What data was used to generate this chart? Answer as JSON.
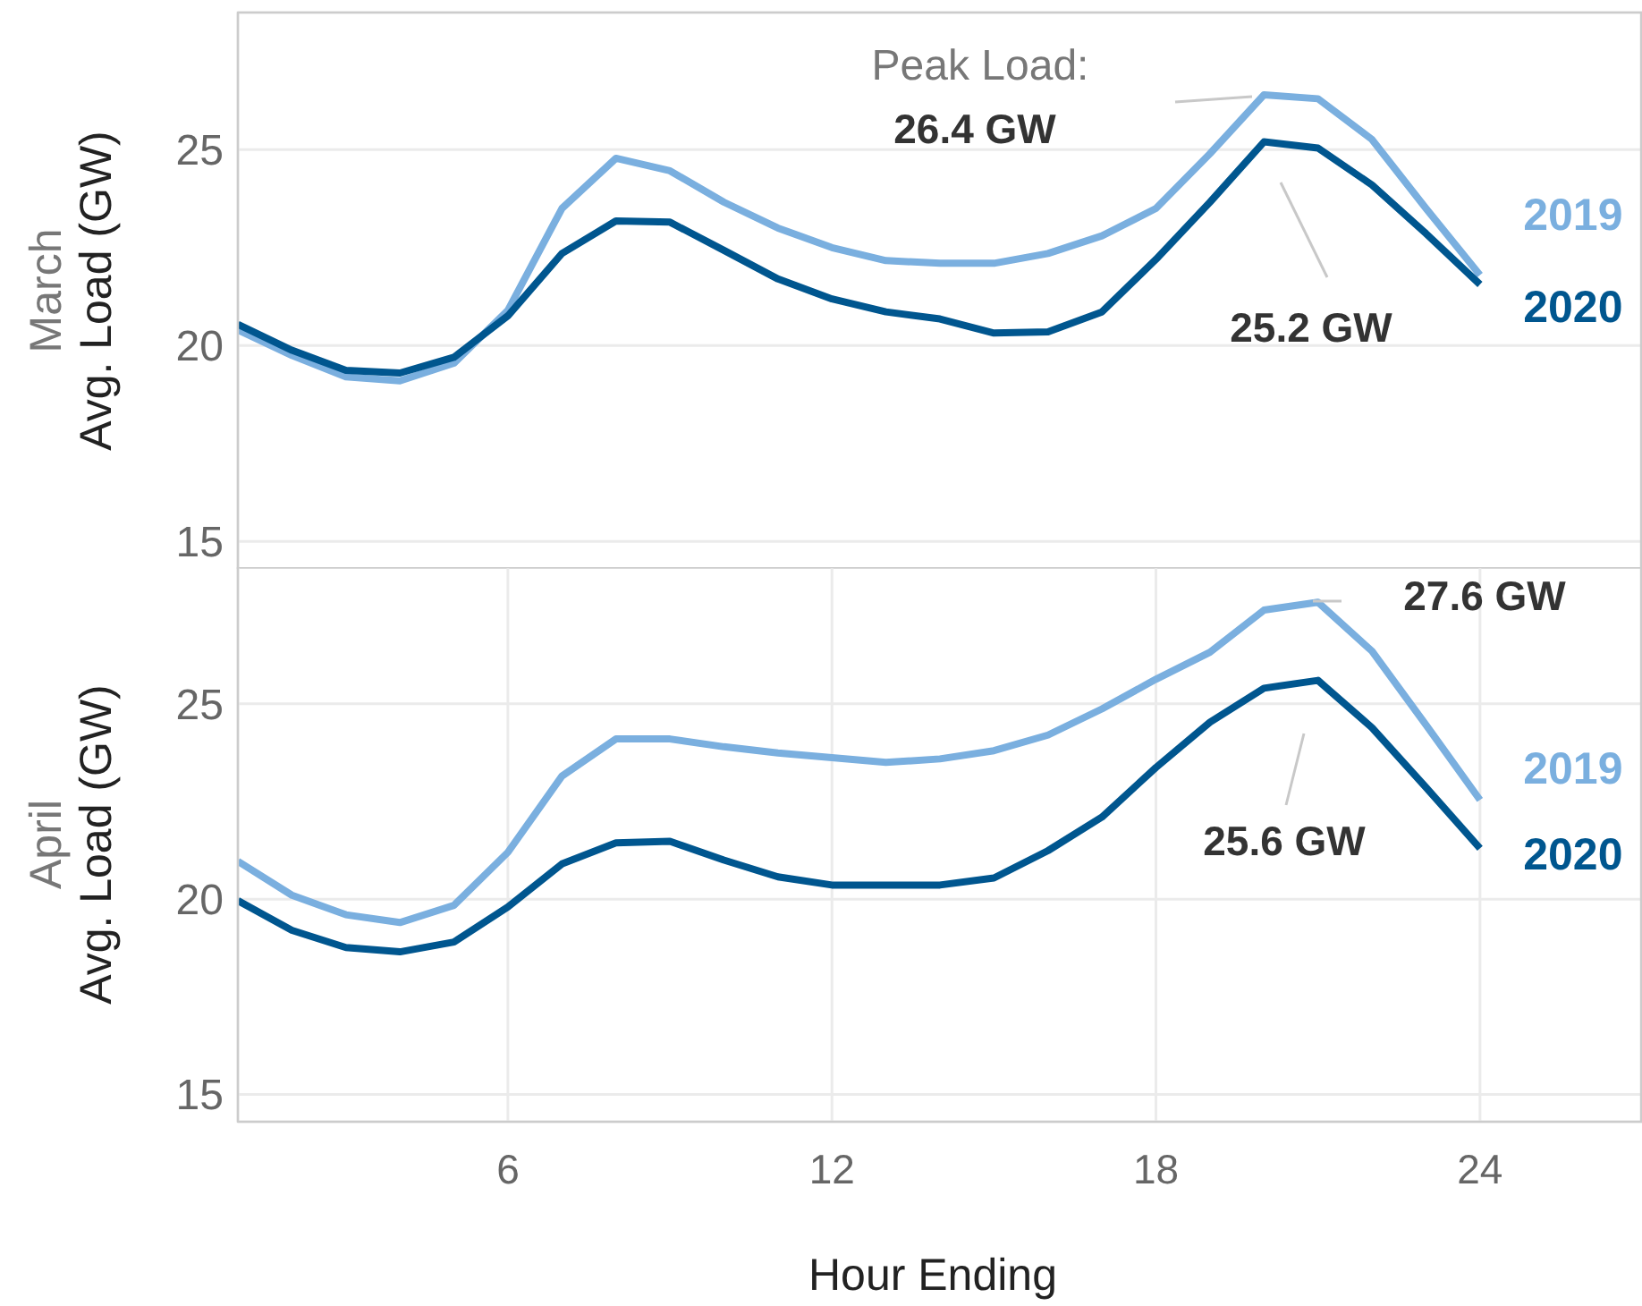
{
  "chart_data": [
    {
      "type": "line",
      "title": "March",
      "ylabel": "Avg. Load (GW)",
      "x": [
        1,
        2,
        3,
        4,
        5,
        6,
        7,
        8,
        9,
        10,
        11,
        12,
        13,
        14,
        15,
        16,
        17,
        18,
        19,
        20,
        21,
        22,
        23,
        24
      ],
      "xlim": [
        1,
        27
      ],
      "xticks": [
        6,
        12,
        18,
        24
      ],
      "ylim": [
        14.3,
        28.5
      ],
      "yticks": [
        15,
        20,
        25
      ],
      "grid": true,
      "legend": false,
      "tick_labels": "y",
      "series": [
        {
          "name": "2019",
          "color": "#7aafdf",
          "values": [
            20.4,
            19.75,
            19.2,
            19.1,
            19.55,
            20.9,
            23.5,
            24.78,
            24.46,
            23.66,
            23.0,
            22.5,
            22.17,
            22.1,
            22.1,
            22.35,
            22.8,
            23.5,
            24.9,
            26.4,
            26.3,
            25.26,
            23.5,
            21.8
          ]
        },
        {
          "name": "2020",
          "color": "#00568f",
          "values": [
            20.54,
            19.88,
            19.37,
            19.3,
            19.7,
            20.76,
            22.35,
            23.18,
            23.15,
            22.43,
            21.7,
            21.19,
            20.86,
            20.68,
            20.32,
            20.35,
            20.86,
            22.2,
            23.66,
            25.2,
            25.04,
            24.1,
            22.86,
            21.56
          ]
        }
      ],
      "annotations": [
        "Peak Load:",
        "26.4 GW",
        "25.2 GW"
      ]
    },
    {
      "type": "line",
      "title": "April",
      "ylabel": "Avg. Load (GW)",
      "xlabel": "Hour Ending",
      "x": [
        1,
        2,
        3,
        4,
        5,
        6,
        7,
        8,
        9,
        10,
        11,
        12,
        13,
        14,
        15,
        16,
        17,
        18,
        19,
        20,
        21,
        22,
        23,
        24
      ],
      "xlim": [
        1,
        27
      ],
      "xticks": [
        6,
        12,
        18,
        24
      ],
      "ylim": [
        14.3,
        28.5
      ],
      "yticks": [
        15,
        20,
        25
      ],
      "grid": true,
      "legend": false,
      "series": [
        {
          "name": "2019",
          "color": "#7aafdf",
          "values": [
            20.97,
            20.1,
            19.6,
            19.4,
            19.84,
            21.2,
            23.15,
            24.1,
            24.1,
            23.9,
            23.74,
            23.62,
            23.5,
            23.59,
            23.8,
            24.2,
            24.87,
            25.63,
            26.32,
            27.4,
            27.6,
            26.35,
            24.46,
            22.54
          ]
        },
        {
          "name": "2020",
          "color": "#00568f",
          "values": [
            19.96,
            19.2,
            18.76,
            18.65,
            18.9,
            19.8,
            20.9,
            21.44,
            21.48,
            21.0,
            20.57,
            20.36,
            20.36,
            20.36,
            20.54,
            21.24,
            22.1,
            23.37,
            24.53,
            25.4,
            25.6,
            24.39,
            22.86,
            21.3
          ]
        }
      ],
      "annotations": [
        "27.6 GW",
        "25.6 GW"
      ]
    }
  ]
}
